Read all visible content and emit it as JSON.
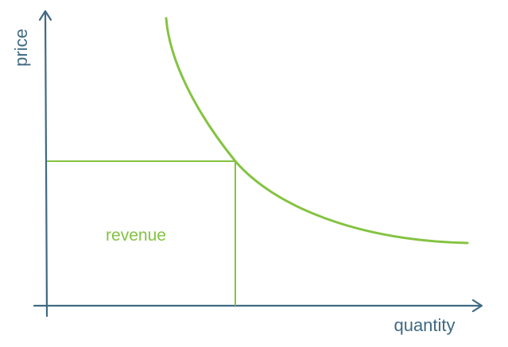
{
  "colors": {
    "axis": "#3f6a82",
    "curve": "#84c341",
    "axis_text": "#3f6a82",
    "region_text": "#84c341"
  },
  "labels": {
    "y_axis": "price",
    "x_axis": "quantity",
    "region": "revenue"
  },
  "icons": {
    "x_arrow": "arrow-right-icon",
    "y_arrow": "arrow-up-icon"
  }
}
